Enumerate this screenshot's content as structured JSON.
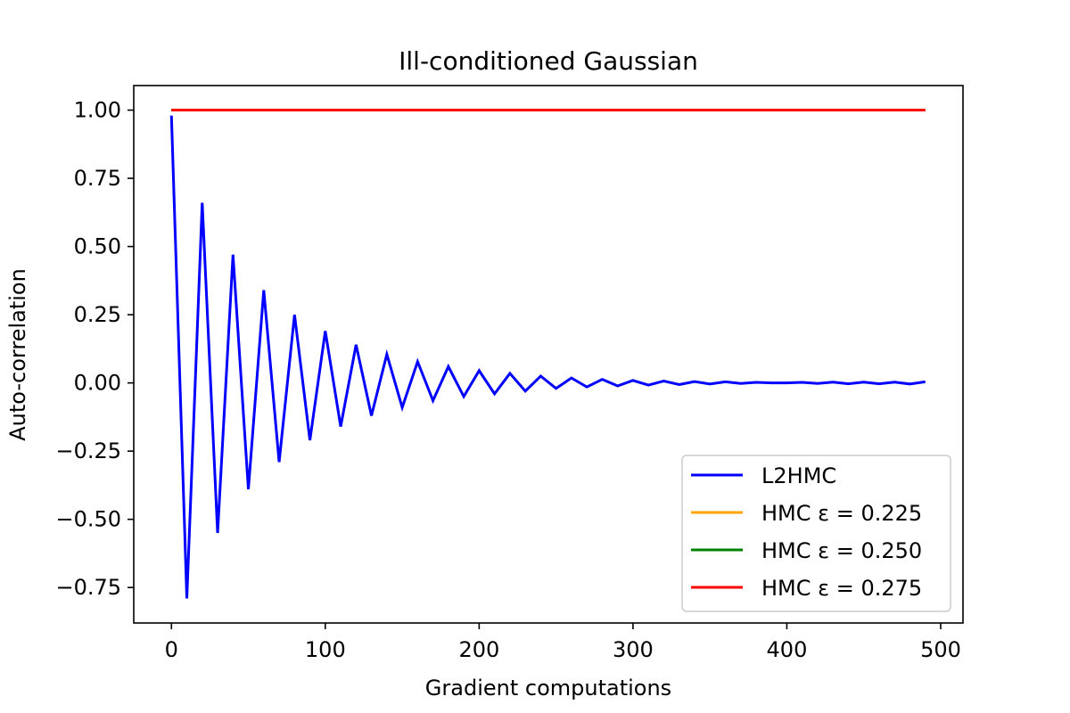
{
  "chart_data": {
    "type": "line",
    "title": "Ill-conditioned Gaussian",
    "xlabel": "Gradient computations",
    "ylabel": "Auto-correlation",
    "xlim": [
      -24.5,
      514.5
    ],
    "ylim": [
      -0.88,
      1.09
    ],
    "xticks": [
      0,
      100,
      200,
      300,
      400,
      500
    ],
    "xtick_labels": [
      "0",
      "100",
      "200",
      "300",
      "400",
      "500"
    ],
    "yticks": [
      1.0,
      0.75,
      0.5,
      0.25,
      0.0,
      -0.25,
      -0.5,
      -0.75
    ],
    "ytick_labels": [
      "1.00",
      "0.75",
      "0.50",
      "0.25",
      "0.00",
      "−0.25",
      "−0.50",
      "−0.75"
    ],
    "grid": false,
    "legend_position": "bottom-right",
    "series": [
      {
        "name": "L2HMC",
        "color": "#0000ff",
        "x": [
          0,
          10,
          20,
          30,
          40,
          50,
          60,
          70,
          80,
          90,
          100,
          110,
          120,
          130,
          140,
          150,
          160,
          170,
          180,
          190,
          200,
          210,
          220,
          230,
          240,
          250,
          260,
          270,
          280,
          290,
          300,
          310,
          320,
          330,
          340,
          350,
          360,
          370,
          380,
          390,
          400,
          410,
          420,
          430,
          440,
          450,
          460,
          470,
          480,
          490
        ],
        "y": [
          0.98,
          -0.79,
          0.66,
          -0.55,
          0.47,
          -0.39,
          0.34,
          -0.29,
          0.25,
          -0.21,
          0.19,
          -0.16,
          0.14,
          -0.12,
          0.105,
          -0.09,
          0.078,
          -0.065,
          0.06,
          -0.05,
          0.045,
          -0.04,
          0.035,
          -0.03,
          0.025,
          -0.02,
          0.018,
          -0.015,
          0.013,
          -0.011,
          0.009,
          -0.008,
          0.007,
          -0.006,
          0.005,
          -0.004,
          0.004,
          -0.002,
          0.002,
          0.0,
          0.0,
          0.002,
          -0.002,
          0.003,
          -0.003,
          0.003,
          -0.003,
          0.003,
          -0.004,
          0.004
        ]
      },
      {
        "name": "HMC ε = 0.225",
        "color": "#ffa500",
        "x": [
          0,
          490
        ],
        "y": [
          1.0,
          1.0
        ]
      },
      {
        "name": "HMC ε = 0.250",
        "color": "#008000",
        "x": [
          0,
          490
        ],
        "y": [
          1.0,
          1.0
        ]
      },
      {
        "name": "HMC ε = 0.275",
        "color": "#ff0000",
        "x": [
          0,
          490
        ],
        "y": [
          1.0,
          1.0
        ]
      }
    ]
  }
}
